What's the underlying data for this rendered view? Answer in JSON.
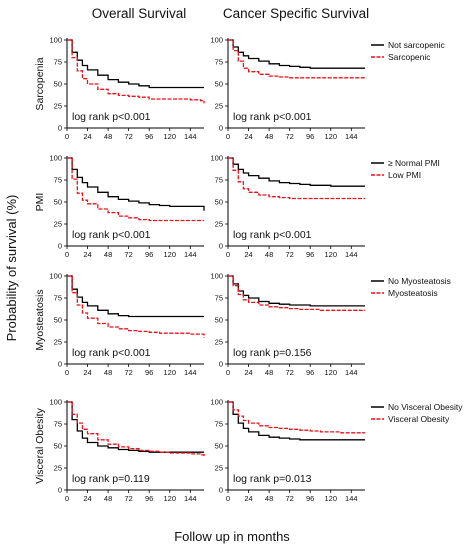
{
  "figure": {
    "column_titles": [
      "Overall Survival",
      "Cancer Specific Survival"
    ],
    "y_axis_label": "Probability of survival (%)",
    "x_axis_label": "Follow up in months",
    "row_labels": [
      "Sarcopenia",
      "PMI",
      "Myosteatosis",
      "Visceral Obesity"
    ],
    "colors": {
      "group_a": "#000000",
      "group_b": "#e8141b"
    }
  },
  "chart_data": [
    {
      "type": "line",
      "row": 0,
      "col": 0,
      "x_ticks": [
        0,
        24,
        48,
        72,
        96,
        120,
        144
      ],
      "y_ticks": [
        0,
        25,
        50,
        75,
        100
      ],
      "xlim": [
        0,
        160
      ],
      "ylim": [
        0,
        100
      ],
      "annotation": "log rank p<0.001",
      "series": [
        {
          "name": "Not sarcopenic",
          "color": "#000000",
          "dash": "solid",
          "x": [
            0,
            6,
            12,
            18,
            24,
            36,
            48,
            60,
            72,
            84,
            96,
            108,
            120,
            132,
            144,
            156,
            160
          ],
          "y": [
            100,
            86,
            77,
            71,
            66,
            60,
            55,
            52,
            50,
            48,
            46,
            46,
            46,
            46,
            46,
            46,
            46
          ]
        },
        {
          "name": "Sarcopenic",
          "color": "#e8141b",
          "dash": "dashed",
          "x": [
            0,
            6,
            12,
            18,
            24,
            36,
            48,
            60,
            72,
            84,
            96,
            108,
            120,
            132,
            144,
            156,
            160
          ],
          "y": [
            100,
            80,
            65,
            56,
            50,
            44,
            39,
            37,
            36,
            35,
            33,
            33,
            33,
            33,
            32,
            31,
            28
          ]
        }
      ]
    },
    {
      "type": "line",
      "row": 0,
      "col": 1,
      "x_ticks": [
        0,
        24,
        48,
        72,
        96,
        120,
        144
      ],
      "y_ticks": [
        0,
        25,
        50,
        75,
        100
      ],
      "xlim": [
        0,
        160
      ],
      "ylim": [
        0,
        100
      ],
      "annotation": "log rank p<0.001",
      "series": [
        {
          "name": "Not sarcopenic",
          "color": "#000000",
          "dash": "solid",
          "x": [
            0,
            6,
            12,
            18,
            24,
            36,
            48,
            60,
            72,
            84,
            96,
            108,
            120,
            132,
            144,
            156,
            160
          ],
          "y": [
            100,
            92,
            86,
            82,
            79,
            76,
            73,
            71,
            70,
            69,
            68,
            68,
            68,
            68,
            68,
            68,
            68
          ]
        },
        {
          "name": "Sarcopenic",
          "color": "#e8141b",
          "dash": "dashed",
          "x": [
            0,
            6,
            12,
            18,
            24,
            36,
            48,
            60,
            72,
            84,
            96,
            108,
            120,
            132,
            144,
            156,
            160
          ],
          "y": [
            100,
            88,
            76,
            68,
            64,
            61,
            59,
            58,
            57,
            57,
            57,
            57,
            57,
            57,
            57,
            57,
            57
          ]
        }
      ]
    },
    {
      "type": "line",
      "row": 1,
      "col": 0,
      "x_ticks": [
        0,
        24,
        48,
        72,
        96,
        120,
        144
      ],
      "y_ticks": [
        0,
        25,
        50,
        75,
        100
      ],
      "xlim": [
        0,
        160
      ],
      "ylim": [
        0,
        100
      ],
      "annotation": "log rank p<0.001",
      "series": [
        {
          "name": "≥ Normal PMI",
          "color": "#000000",
          "dash": "solid",
          "x": [
            0,
            6,
            12,
            18,
            24,
            36,
            48,
            60,
            72,
            84,
            96,
            108,
            120,
            132,
            144,
            156,
            160
          ],
          "y": [
            100,
            87,
            78,
            72,
            67,
            61,
            56,
            53,
            51,
            49,
            47,
            46,
            45,
            45,
            45,
            45,
            40
          ]
        },
        {
          "name": "Low PMI",
          "color": "#e8141b",
          "dash": "dashed",
          "x": [
            0,
            6,
            12,
            18,
            24,
            36,
            48,
            60,
            72,
            84,
            96,
            108,
            120,
            132,
            144,
            156,
            160
          ],
          "y": [
            100,
            76,
            60,
            52,
            48,
            42,
            38,
            34,
            32,
            30,
            29,
            29,
            29,
            29,
            29,
            29,
            29
          ]
        }
      ]
    },
    {
      "type": "line",
      "row": 1,
      "col": 1,
      "x_ticks": [
        0,
        24,
        48,
        72,
        96,
        120,
        144
      ],
      "y_ticks": [
        0,
        25,
        50,
        75,
        100
      ],
      "xlim": [
        0,
        160
      ],
      "ylim": [
        0,
        100
      ],
      "annotation": "log rank p<0.001",
      "series": [
        {
          "name": "≥ Normal PMI",
          "color": "#000000",
          "dash": "solid",
          "x": [
            0,
            6,
            12,
            18,
            24,
            36,
            48,
            60,
            72,
            84,
            96,
            108,
            120,
            132,
            144,
            156,
            160
          ],
          "y": [
            100,
            93,
            87,
            83,
            80,
            77,
            74,
            72,
            71,
            70,
            69,
            69,
            68,
            68,
            68,
            68,
            68
          ]
        },
        {
          "name": "Low PMI",
          "color": "#e8141b",
          "dash": "dashed",
          "x": [
            0,
            6,
            12,
            18,
            24,
            36,
            48,
            60,
            72,
            84,
            96,
            108,
            120,
            132,
            144,
            156,
            160
          ],
          "y": [
            100,
            86,
            73,
            65,
            61,
            58,
            56,
            55,
            54,
            54,
            54,
            54,
            54,
            54,
            54,
            54,
            54
          ]
        }
      ]
    },
    {
      "type": "line",
      "row": 2,
      "col": 0,
      "x_ticks": [
        0,
        24,
        48,
        72,
        96,
        120,
        144
      ],
      "y_ticks": [
        0,
        25,
        50,
        75,
        100
      ],
      "xlim": [
        0,
        160
      ],
      "ylim": [
        0,
        100
      ],
      "annotation": "log rank p<0.001",
      "series": [
        {
          "name": "No Myosteatosis",
          "color": "#000000",
          "dash": "solid",
          "x": [
            0,
            6,
            12,
            18,
            24,
            36,
            48,
            60,
            72,
            84,
            96,
            108,
            120,
            132,
            144,
            156,
            160
          ],
          "y": [
            100,
            85,
            76,
            70,
            66,
            61,
            57,
            55,
            54,
            54,
            54,
            54,
            54,
            54,
            54,
            54,
            54
          ]
        },
        {
          "name": "Myosteatosis",
          "color": "#e8141b",
          "dash": "dashed",
          "x": [
            0,
            6,
            12,
            18,
            24,
            36,
            48,
            60,
            72,
            84,
            96,
            108,
            120,
            132,
            144,
            156,
            160
          ],
          "y": [
            100,
            81,
            67,
            58,
            52,
            46,
            42,
            40,
            38,
            37,
            36,
            35,
            35,
            35,
            34,
            34,
            30
          ]
        }
      ]
    },
    {
      "type": "line",
      "row": 2,
      "col": 1,
      "x_ticks": [
        0,
        24,
        48,
        72,
        96,
        120,
        144
      ],
      "y_ticks": [
        0,
        25,
        50,
        75,
        100
      ],
      "xlim": [
        0,
        160
      ],
      "ylim": [
        0,
        100
      ],
      "annotation": "log rank p=0.156",
      "series": [
        {
          "name": "No Myosteatosis",
          "color": "#000000",
          "dash": "solid",
          "x": [
            0,
            6,
            12,
            18,
            24,
            36,
            48,
            60,
            72,
            84,
            96,
            108,
            120,
            132,
            144,
            156,
            160
          ],
          "y": [
            100,
            91,
            83,
            78,
            75,
            71,
            69,
            68,
            67,
            67,
            66,
            66,
            66,
            66,
            66,
            66,
            66
          ]
        },
        {
          "name": "Myosteatosis",
          "color": "#e8141b",
          "dash": "dashed",
          "x": [
            0,
            6,
            12,
            18,
            24,
            36,
            48,
            60,
            72,
            84,
            96,
            108,
            120,
            132,
            144,
            156,
            160
          ],
          "y": [
            100,
            89,
            79,
            73,
            70,
            67,
            65,
            64,
            63,
            62,
            62,
            61,
            61,
            61,
            61,
            61,
            61
          ]
        }
      ]
    },
    {
      "type": "line",
      "row": 3,
      "col": 0,
      "x_ticks": [
        0,
        24,
        48,
        72,
        96,
        120,
        144
      ],
      "y_ticks": [
        0,
        25,
        50,
        75,
        100
      ],
      "xlim": [
        0,
        160
      ],
      "ylim": [
        0,
        100
      ],
      "annotation": "log rank p=0.119",
      "series": [
        {
          "name": "No Visceral Obesity",
          "color": "#000000",
          "dash": "solid",
          "x": [
            0,
            6,
            12,
            18,
            24,
            36,
            48,
            60,
            72,
            84,
            96,
            108,
            120,
            132,
            144,
            156,
            160
          ],
          "y": [
            100,
            80,
            67,
            59,
            54,
            50,
            48,
            46,
            45,
            44,
            43,
            43,
            43,
            43,
            43,
            43,
            43
          ]
        },
        {
          "name": "Visceral Obesity",
          "color": "#e8141b",
          "dash": "dashed",
          "x": [
            0,
            6,
            12,
            18,
            24,
            36,
            48,
            60,
            72,
            84,
            96,
            108,
            120,
            132,
            144,
            156,
            160
          ],
          "y": [
            100,
            86,
            76,
            69,
            64,
            57,
            52,
            49,
            47,
            45,
            44,
            43,
            42,
            42,
            41,
            40,
            37
          ]
        }
      ]
    },
    {
      "type": "line",
      "row": 3,
      "col": 1,
      "x_ticks": [
        0,
        24,
        48,
        72,
        96,
        120,
        144
      ],
      "y_ticks": [
        0,
        25,
        50,
        75,
        100
      ],
      "xlim": [
        0,
        160
      ],
      "ylim": [
        0,
        100
      ],
      "annotation": "log rank p=0.013",
      "series": [
        {
          "name": "No Visceral Obesity",
          "color": "#000000",
          "dash": "solid",
          "x": [
            0,
            6,
            12,
            18,
            24,
            36,
            48,
            60,
            72,
            84,
            96,
            108,
            120,
            132,
            144,
            156,
            160
          ],
          "y": [
            100,
            86,
            76,
            70,
            66,
            62,
            60,
            59,
            58,
            57,
            57,
            57,
            57,
            57,
            57,
            57,
            57
          ]
        },
        {
          "name": "Visceral Obesity",
          "color": "#e8141b",
          "dash": "dashed",
          "x": [
            0,
            6,
            12,
            18,
            24,
            36,
            48,
            60,
            72,
            84,
            96,
            108,
            120,
            132,
            144,
            156,
            160
          ],
          "y": [
            100,
            91,
            84,
            79,
            76,
            73,
            71,
            70,
            69,
            68,
            67,
            66,
            66,
            65,
            65,
            65,
            65
          ]
        }
      ]
    }
  ]
}
